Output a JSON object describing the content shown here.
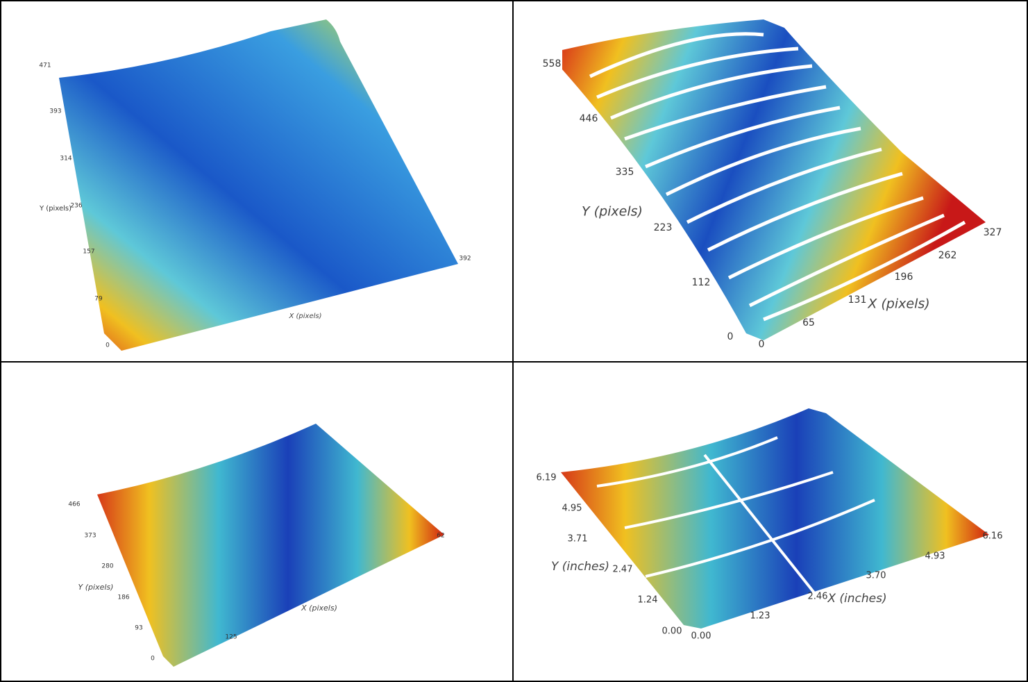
{
  "panels": [
    {
      "y_label": "Y (pixels)",
      "x_label": "X (pixels)",
      "y_ticks": [
        "471",
        "393",
        "314",
        "236",
        "157",
        "79",
        "0"
      ],
      "x_ticks": [
        "392"
      ]
    },
    {
      "y_label": "Y (pixels)",
      "x_label": "X (pixels)",
      "y_ticks": [
        "558",
        "446",
        "335",
        "223",
        "112",
        "0"
      ],
      "x_ticks": [
        "0",
        "65",
        "131",
        "196",
        "262",
        "327"
      ]
    },
    {
      "y_label": "Y (pixels)",
      "x_label": "X (pixels)",
      "y_ticks": [
        "466",
        "373",
        "280",
        "186",
        "93",
        "0"
      ],
      "x_ticks": [
        "125",
        "62"
      ]
    },
    {
      "y_label": "Y (inches)",
      "x_label": "X (inches)",
      "y_ticks": [
        "6.19",
        "4.95",
        "3.71",
        "2.47",
        "1.24",
        "0.00"
      ],
      "x_ticks": [
        "0.00",
        "1.23",
        "2.46",
        "3.70",
        "4.93",
        "6.16"
      ]
    }
  ]
}
